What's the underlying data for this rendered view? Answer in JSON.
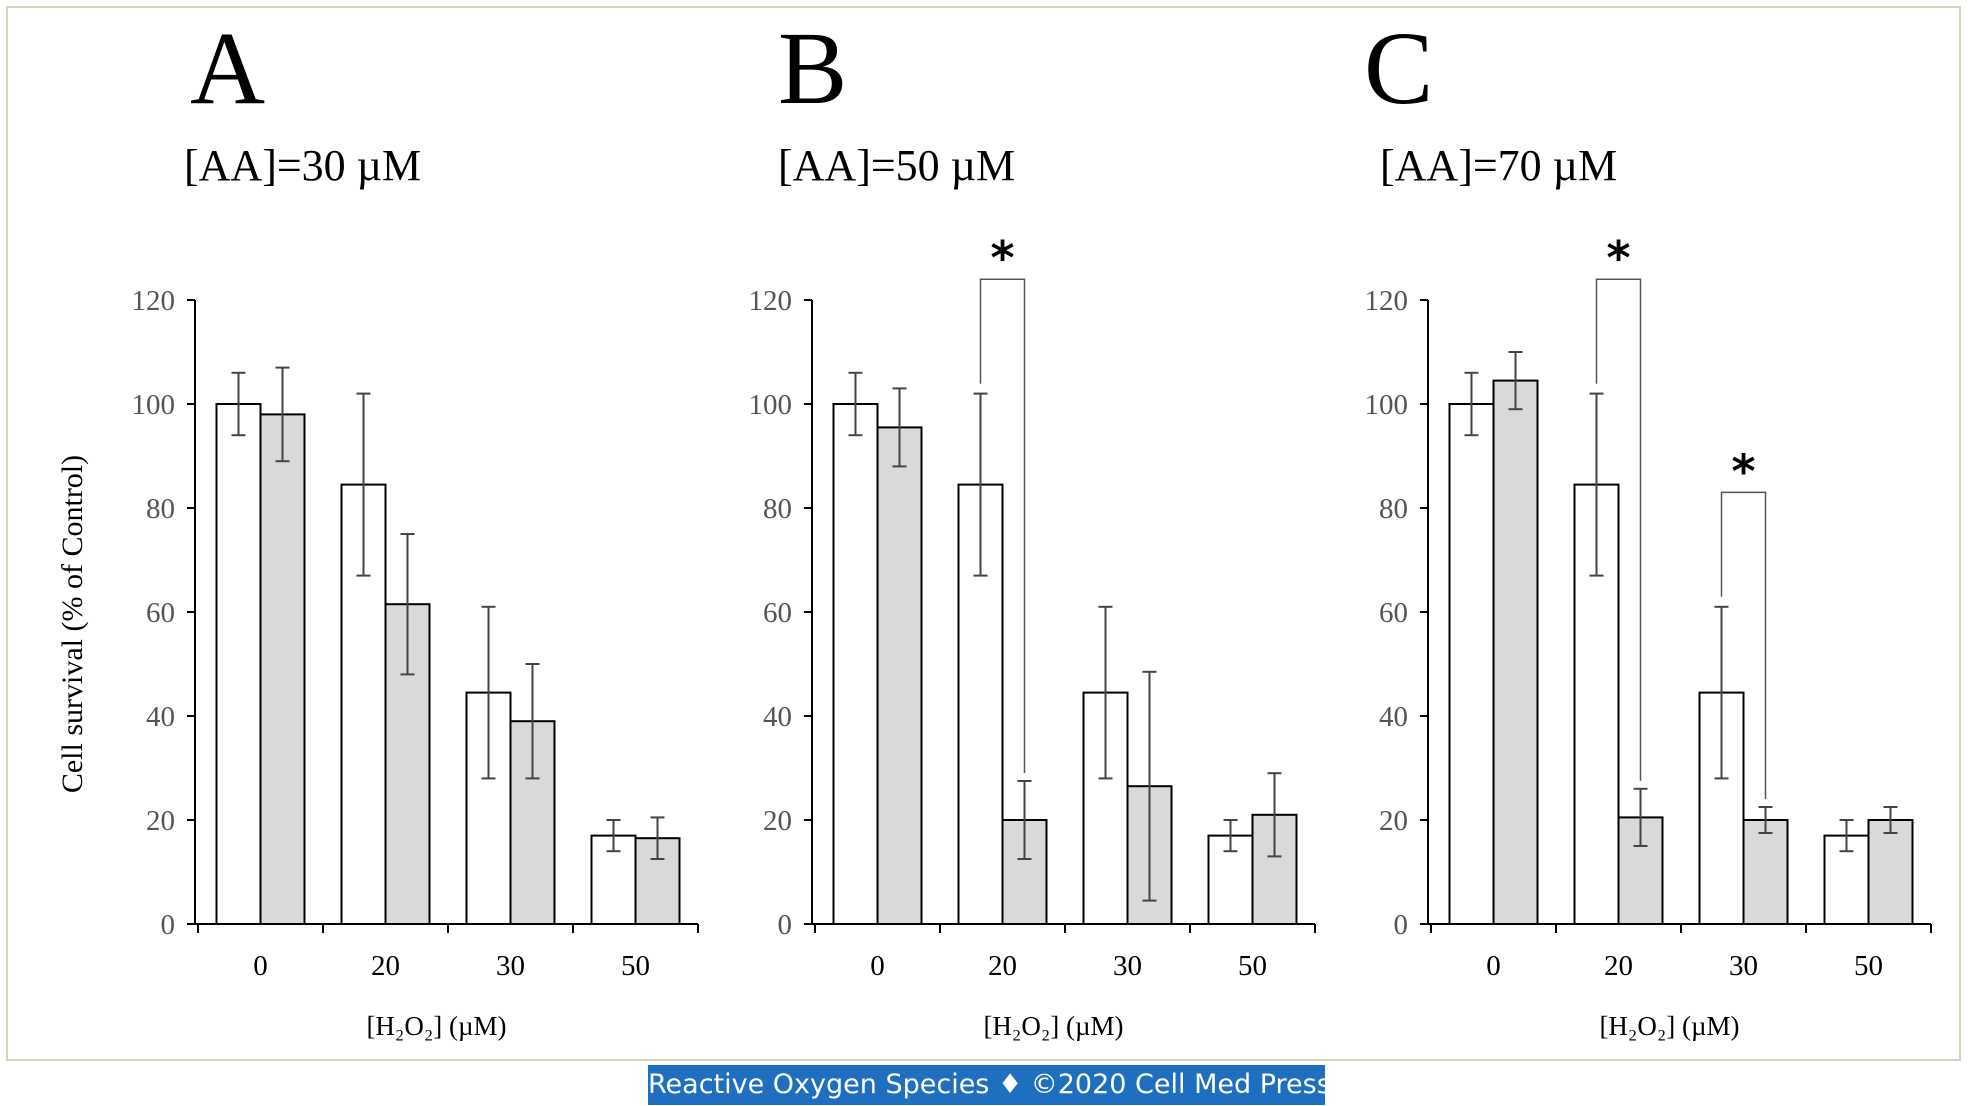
{
  "footer_text": "Reactive Oxygen Species ♦ ©2020 Cell Med Press",
  "shared_ylabel": "Cell survival (% of Control)",
  "colors": {
    "control_bar": "#ffffff",
    "treated_bar": "#d9d9d9",
    "stroke": "#000000",
    "error_bar": "#444444",
    "tick_text": "#555555"
  },
  "chart_data": [
    {
      "type": "bar",
      "panel": "A",
      "title": "[AA]=30 µM",
      "xlabel": "[H2O2] (µM)",
      "ylabel": "Cell survival (% of Control)",
      "ylim": [
        0,
        120
      ],
      "yticks": [
        0,
        20,
        40,
        60,
        80,
        100,
        120
      ],
      "categories": [
        "0",
        "20",
        "30",
        "50"
      ],
      "series": [
        {
          "values": [
            100,
            84.5,
            44.5,
            17
          ],
          "errors": [
            6,
            17.5,
            16.5,
            3
          ]
        },
        {
          "values": [
            98,
            61.5,
            39,
            16.5
          ],
          "errors": [
            9,
            13.5,
            11,
            4
          ]
        }
      ],
      "significance": []
    },
    {
      "type": "bar",
      "panel": "B",
      "title": "[AA]=50 µM",
      "xlabel": "[H2O2] (µM)",
      "ylabel": "",
      "ylim": [
        0,
        120
      ],
      "yticks": [
        0,
        20,
        40,
        60,
        80,
        100,
        120
      ],
      "categories": [
        "0",
        "20",
        "30",
        "50"
      ],
      "series": [
        {
          "values": [
            100,
            84.5,
            44.5,
            17
          ],
          "errors": [
            6,
            17.5,
            16.5,
            3
          ]
        },
        {
          "values": [
            95.5,
            20,
            26.5,
            21
          ],
          "errors": [
            7.5,
            7.5,
            22,
            8
          ]
        }
      ],
      "significance": [
        {
          "category": 1,
          "label": "*"
        }
      ]
    },
    {
      "type": "bar",
      "panel": "C",
      "title": "[AA]=70 µM",
      "xlabel": "[H2O2] (µM)",
      "ylabel": "",
      "ylim": [
        0,
        120
      ],
      "yticks": [
        0,
        20,
        40,
        60,
        80,
        100,
        120
      ],
      "categories": [
        "0",
        "20",
        "30",
        "50"
      ],
      "series": [
        {
          "values": [
            100,
            84.5,
            44.5,
            17
          ],
          "errors": [
            6,
            17.5,
            16.5,
            3
          ]
        },
        {
          "values": [
            104.5,
            20.5,
            20,
            20
          ],
          "errors": [
            5.5,
            5.5,
            2.5,
            2.5
          ]
        }
      ],
      "significance": [
        {
          "category": 1,
          "label": "*"
        },
        {
          "category": 2,
          "label": "*"
        }
      ]
    }
  ]
}
